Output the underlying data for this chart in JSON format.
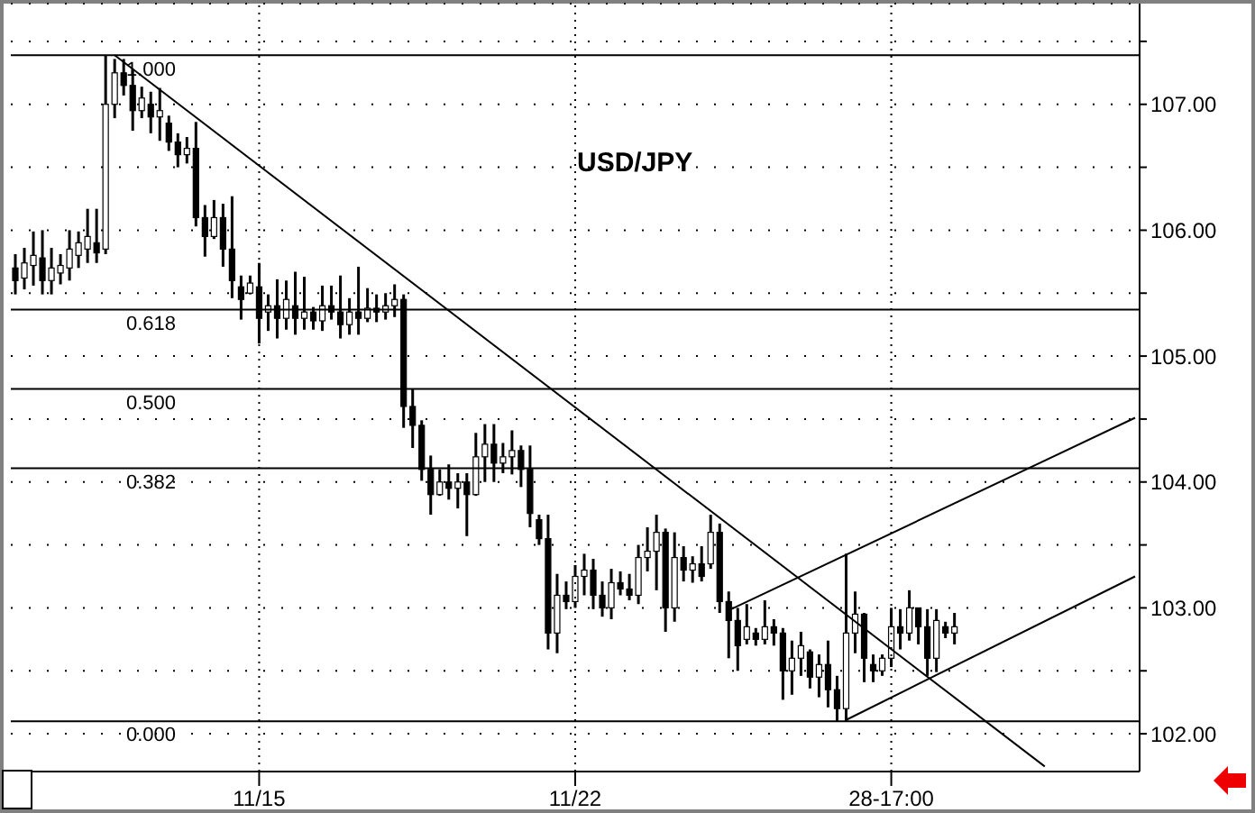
{
  "chart_data": {
    "type": "candlestick",
    "title": "USD/JPY",
    "categories": [
      null,
      null,
      null,
      null,
      null,
      null,
      null,
      null,
      null,
      null,
      null,
      null,
      null,
      null,
      null,
      null,
      null,
      null,
      null,
      null,
      null,
      null,
      null,
      null,
      null,
      null,
      null,
      "11/15",
      null,
      null,
      null,
      null,
      null,
      null,
      null,
      null,
      null,
      null,
      null,
      null,
      null,
      null,
      null,
      null,
      null,
      null,
      null,
      null,
      null,
      null,
      null,
      null,
      null,
      null,
      null,
      null,
      null,
      null,
      null,
      null,
      null,
      null,
      "11/22",
      null,
      null,
      null,
      null,
      null,
      null,
      null,
      null,
      null,
      null,
      null,
      null,
      null,
      null,
      null,
      null,
      null,
      null,
      null,
      null,
      null,
      null,
      null,
      null,
      null,
      null,
      null,
      null,
      null,
      null,
      null,
      null,
      null,
      null,
      "28-17:00",
      null,
      null,
      null,
      null,
      null,
      null,
      null,
      null,
      null,
      null,
      null,
      null,
      null,
      null,
      null,
      null,
      null,
      null,
      null,
      null,
      null,
      null,
      null,
      null,
      null,
      null,
      null
    ],
    "ohlc": [
      [
        105.7,
        105.81,
        105.49,
        105.6
      ],
      [
        105.62,
        105.86,
        105.53,
        105.74
      ],
      [
        105.72,
        105.99,
        105.56,
        105.8
      ],
      [
        105.78,
        106.0,
        105.49,
        105.6
      ],
      [
        105.6,
        105.86,
        105.49,
        105.7
      ],
      [
        105.66,
        105.81,
        105.57,
        105.72
      ],
      [
        105.7,
        106.0,
        105.6,
        105.85
      ],
      [
        105.8,
        105.99,
        105.7,
        105.9
      ],
      [
        105.85,
        106.17,
        105.74,
        105.95
      ],
      [
        105.9,
        106.17,
        105.74,
        105.82
      ],
      [
        105.85,
        107.39,
        105.81,
        107.0
      ],
      [
        107.0,
        107.36,
        106.89,
        107.25
      ],
      [
        107.25,
        107.36,
        107.07,
        107.15
      ],
      [
        107.15,
        107.27,
        106.79,
        106.95
      ],
      [
        106.95,
        107.14,
        106.89,
        107.05
      ],
      [
        107.0,
        107.1,
        106.77,
        106.9
      ],
      [
        106.9,
        107.13,
        106.71,
        106.95
      ],
      [
        106.85,
        106.91,
        106.63,
        106.7
      ],
      [
        106.7,
        106.77,
        106.5,
        106.6
      ],
      [
        106.6,
        106.74,
        106.53,
        106.65
      ],
      [
        106.65,
        106.86,
        106.03,
        106.1
      ],
      [
        106.1,
        106.2,
        105.79,
        105.95
      ],
      [
        105.95,
        106.24,
        105.93,
        106.1
      ],
      [
        106.1,
        106.21,
        105.71,
        105.85
      ],
      [
        105.85,
        106.27,
        105.46,
        105.6
      ],
      [
        105.55,
        105.64,
        105.29,
        105.45
      ],
      [
        105.5,
        105.64,
        105.49,
        105.58
      ],
      [
        105.55,
        105.74,
        105.1,
        105.3
      ],
      [
        105.35,
        105.49,
        105.2,
        105.4
      ],
      [
        105.4,
        105.61,
        105.14,
        105.3
      ],
      [
        105.3,
        105.6,
        105.21,
        105.45
      ],
      [
        105.4,
        105.67,
        105.17,
        105.3
      ],
      [
        105.3,
        105.63,
        105.21,
        105.35
      ],
      [
        105.35,
        105.39,
        105.21,
        105.28
      ],
      [
        105.28,
        105.56,
        105.2,
        105.4
      ],
      [
        105.4,
        105.56,
        105.29,
        105.35
      ],
      [
        105.35,
        105.64,
        105.14,
        105.25
      ],
      [
        105.25,
        105.46,
        105.17,
        105.35
      ],
      [
        105.35,
        105.71,
        105.17,
        105.3
      ],
      [
        105.3,
        105.54,
        105.27,
        105.38
      ],
      [
        105.38,
        105.49,
        105.27,
        105.35
      ],
      [
        105.35,
        105.5,
        105.29,
        105.4
      ],
      [
        105.4,
        105.57,
        105.31,
        105.45
      ],
      [
        105.45,
        105.49,
        104.43,
        104.6
      ],
      [
        104.6,
        104.74,
        104.27,
        104.45
      ],
      [
        104.45,
        104.49,
        104.01,
        104.1
      ],
      [
        104.1,
        104.21,
        103.74,
        103.9
      ],
      [
        103.9,
        104.1,
        103.89,
        104.0
      ],
      [
        104.0,
        104.14,
        103.86,
        103.95
      ],
      [
        103.95,
        104.07,
        103.79,
        104.0
      ],
      [
        104.0,
        104.07,
        103.57,
        103.9
      ],
      [
        103.9,
        104.39,
        103.89,
        104.2
      ],
      [
        104.2,
        104.46,
        104.0,
        104.3
      ],
      [
        104.3,
        104.46,
        104.0,
        104.15
      ],
      [
        104.15,
        104.31,
        104.07,
        104.2
      ],
      [
        104.2,
        104.41,
        104.06,
        104.25
      ],
      [
        104.25,
        104.29,
        103.96,
        104.1
      ],
      [
        104.1,
        104.29,
        103.64,
        103.75
      ],
      [
        103.7,
        103.74,
        103.5,
        103.55
      ],
      [
        103.55,
        103.74,
        102.67,
        102.8
      ],
      [
        102.8,
        103.27,
        102.64,
        103.1
      ],
      [
        103.1,
        103.21,
        102.99,
        103.05
      ],
      [
        103.05,
        103.34,
        103.0,
        103.25
      ],
      [
        103.25,
        103.43,
        103.1,
        103.3
      ],
      [
        103.3,
        103.39,
        102.99,
        103.1
      ],
      [
        103.1,
        103.21,
        102.93,
        103.0
      ],
      [
        103.0,
        103.31,
        102.91,
        103.2
      ],
      [
        103.2,
        103.29,
        103.1,
        103.15
      ],
      [
        103.15,
        103.27,
        103.06,
        103.1
      ],
      [
        103.1,
        103.5,
        103.03,
        103.4
      ],
      [
        103.4,
        103.64,
        103.29,
        103.45
      ],
      [
        103.45,
        103.74,
        103.14,
        103.6
      ],
      [
        103.6,
        103.63,
        102.81,
        103.0
      ],
      [
        103.0,
        103.6,
        102.89,
        103.4
      ],
      [
        103.4,
        103.49,
        103.21,
        103.3
      ],
      [
        103.3,
        103.41,
        103.2,
        103.35
      ],
      [
        103.35,
        103.49,
        103.21,
        103.25
      ],
      [
        103.35,
        103.74,
        103.31,
        103.6
      ],
      [
        103.6,
        103.67,
        102.96,
        103.05
      ],
      [
        103.05,
        103.13,
        102.6,
        102.9
      ],
      [
        102.9,
        103.0,
        102.5,
        102.7
      ],
      [
        102.75,
        103.03,
        102.71,
        102.85
      ],
      [
        102.8,
        102.84,
        102.7,
        102.75
      ],
      [
        102.75,
        103.06,
        102.71,
        102.85
      ],
      [
        102.85,
        102.91,
        102.7,
        102.8
      ],
      [
        102.8,
        102.84,
        102.27,
        102.5
      ],
      [
        102.5,
        102.74,
        102.31,
        102.6
      ],
      [
        102.6,
        102.81,
        102.46,
        102.7
      ],
      [
        102.65,
        102.67,
        102.36,
        102.45
      ],
      [
        102.45,
        102.63,
        102.29,
        102.55
      ],
      [
        102.55,
        102.74,
        102.21,
        102.35
      ],
      [
        102.35,
        102.46,
        102.1,
        102.2
      ],
      [
        102.2,
        103.43,
        102.1,
        102.8
      ],
      [
        102.8,
        103.13,
        102.64,
        102.95
      ],
      [
        102.95,
        102.96,
        102.41,
        102.6
      ],
      [
        102.55,
        102.63,
        102.41,
        102.5
      ],
      [
        102.5,
        102.63,
        102.46,
        102.6
      ],
      [
        102.6,
        103.0,
        102.53,
        102.85
      ],
      [
        102.85,
        102.99,
        102.67,
        102.8
      ],
      [
        102.8,
        103.14,
        102.74,
        103.0
      ],
      [
        103.0,
        103.0,
        102.71,
        102.85
      ],
      [
        102.85,
        102.99,
        102.46,
        102.6
      ],
      [
        102.6,
        102.99,
        102.49,
        102.9
      ],
      [
        102.85,
        102.89,
        102.76,
        102.8
      ],
      [
        102.8,
        102.96,
        102.71,
        102.85
      ],
      null,
      null,
      null,
      null,
      null,
      null,
      null,
      null,
      null,
      null,
      null,
      null,
      null,
      null,
      null,
      null,
      null,
      null,
      null,
      null
    ],
    "color": "#000000",
    "series": [
      {
        "type": "line",
        "color": "#000000",
        "values": [
          null,
          null,
          null,
          null,
          null,
          null,
          null,
          null,
          null,
          null,
          null,
          107.39,
          null,
          null,
          null,
          null,
          null,
          null,
          null,
          null,
          null,
          null,
          null,
          null,
          null,
          null,
          null,
          null,
          null,
          null,
          null,
          null,
          null,
          null,
          null,
          null,
          null,
          null,
          null,
          null,
          null,
          null,
          null,
          null,
          null,
          null,
          null,
          null,
          null,
          null,
          null,
          null,
          null,
          null,
          null,
          null,
          null,
          null,
          null,
          null,
          null,
          null,
          null,
          null,
          null,
          null,
          null,
          null,
          null,
          null,
          null,
          null,
          null,
          null,
          null,
          null,
          null,
          null,
          null,
          null,
          null,
          null,
          null,
          null,
          null,
          null,
          null,
          null,
          null,
          null,
          null,
          null,
          null,
          null,
          null,
          null,
          null,
          null,
          null,
          null,
          null,
          null,
          null,
          null,
          null,
          null,
          null,
          null,
          null,
          null,
          null,
          null,
          null,
          null,
          101.74,
          null,
          null,
          null,
          null,
          null,
          null,
          null,
          null,
          null,
          null
        ]
      },
      {
        "type": "line",
        "color": "#000000",
        "values": [
          null,
          null,
          null,
          null,
          null,
          null,
          null,
          null,
          null,
          null,
          null,
          null,
          null,
          null,
          null,
          null,
          null,
          null,
          null,
          null,
          null,
          null,
          null,
          null,
          null,
          null,
          null,
          null,
          null,
          null,
          null,
          null,
          null,
          null,
          null,
          null,
          null,
          null,
          null,
          null,
          null,
          null,
          null,
          null,
          null,
          null,
          null,
          null,
          null,
          null,
          null,
          null,
          null,
          null,
          null,
          null,
          null,
          null,
          null,
          null,
          null,
          null,
          null,
          null,
          null,
          null,
          null,
          null,
          null,
          null,
          null,
          null,
          null,
          null,
          null,
          null,
          null,
          null,
          null,
          102.98,
          null,
          null,
          null,
          null,
          null,
          null,
          null,
          null,
          null,
          null,
          null,
          null,
          null,
          null,
          null,
          null,
          null,
          null,
          null,
          null,
          null,
          null,
          null,
          null,
          null,
          null,
          null,
          null,
          null,
          null,
          null,
          null,
          null,
          null,
          null,
          null,
          null,
          null,
          null,
          null,
          null,
          null,
          null,
          null,
          104.51
        ]
      },
      {
        "type": "line",
        "color": "#000000",
        "values": [
          null,
          null,
          null,
          null,
          null,
          null,
          null,
          null,
          null,
          null,
          null,
          null,
          null,
          null,
          null,
          null,
          null,
          null,
          null,
          null,
          null,
          null,
          null,
          null,
          null,
          null,
          null,
          null,
          null,
          null,
          null,
          null,
          null,
          null,
          null,
          null,
          null,
          null,
          null,
          null,
          null,
          null,
          null,
          null,
          null,
          null,
          null,
          null,
          null,
          null,
          null,
          null,
          null,
          null,
          null,
          null,
          null,
          null,
          null,
          null,
          null,
          null,
          null,
          null,
          null,
          null,
          null,
          null,
          null,
          null,
          null,
          null,
          null,
          null,
          null,
          null,
          null,
          null,
          null,
          null,
          null,
          null,
          null,
          null,
          null,
          null,
          null,
          null,
          null,
          null,
          null,
          null,
          102.11,
          null,
          null,
          null,
          null,
          null,
          null,
          null,
          null,
          null,
          null,
          null,
          null,
          null,
          null,
          null,
          null,
          null,
          null,
          null,
          null,
          null,
          null,
          null,
          null,
          null,
          null,
          null,
          null,
          null,
          null,
          null,
          103.25
        ]
      }
    ],
    "ref_lines": [
      {
        "axis": "y",
        "value": 107.39,
        "color": "#000000"
      },
      {
        "axis": "y",
        "value": 105.37,
        "color": "#000000"
      },
      {
        "axis": "y",
        "value": 104.74,
        "color": "#000000"
      },
      {
        "axis": "y",
        "value": 104.11,
        "color": "#000000"
      },
      {
        "axis": "y",
        "value": 102.1,
        "color": "#000000"
      }
    ],
    "annotations": [
      {
        "text": "1.000",
        "y": 107.39
      },
      {
        "text": "0.618",
        "y": 105.37
      },
      {
        "text": "0.500",
        "y": 104.74
      },
      {
        "text": "0.382",
        "y": 104.11
      },
      {
        "text": "0.000",
        "y": 102.1
      }
    ],
    "ylim": [
      101.7,
      107.8
    ],
    "yticks": [
      {
        "value": 102,
        "label": "102.00"
      },
      {
        "value": 102.5,
        "label": null
      },
      {
        "value": 103,
        "label": "103.00"
      },
      {
        "value": 103.5,
        "label": null
      },
      {
        "value": 104,
        "label": "104.00"
      },
      {
        "value": 104.5,
        "label": null
      },
      {
        "value": 105,
        "label": "105.00"
      },
      {
        "value": 105.5,
        "label": null
      },
      {
        "value": 106,
        "label": "106.00"
      },
      {
        "value": 106.5,
        "label": null
      },
      {
        "value": 107,
        "label": "107.00"
      },
      {
        "value": 107.5,
        "label": null
      }
    ],
    "grid": true
  }
}
